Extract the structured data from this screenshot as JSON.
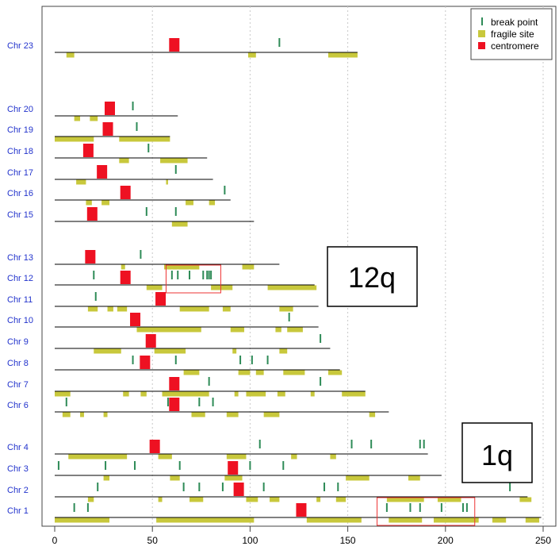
{
  "chart_data": {
    "type": "scatter",
    "xlim": [
      0,
      250
    ],
    "x_ticks": [
      0,
      50,
      100,
      150,
      200,
      250
    ],
    "x_grid": [
      50,
      100,
      150,
      200,
      250
    ],
    "grid": true,
    "legend_position": "top-right",
    "legend": [
      {
        "key": "break_point",
        "label": "break point",
        "symbol": "tick",
        "color": "#2e8b57"
      },
      {
        "key": "fragile_site",
        "label": "fragile site",
        "symbol": "square",
        "color": "#c8c83c"
      },
      {
        "key": "centromere",
        "label": "centromere",
        "symbol": "square",
        "color": "#ee1122"
      }
    ],
    "chromosomes": [
      {
        "label": "Chr 23",
        "length": 155,
        "centromere": 61,
        "breakpoints": [
          115
        ],
        "fragile_sites": [
          [
            6,
            10
          ],
          [
            99,
            103
          ],
          [
            140,
            155
          ]
        ]
      },
      {
        "label": "Chr 20",
        "length": 63,
        "centromere": 28,
        "breakpoints": [
          40
        ],
        "fragile_sites": [
          [
            10,
            13
          ],
          [
            18,
            22
          ]
        ]
      },
      {
        "label": "Chr 19",
        "length": 59,
        "centromere": 27,
        "breakpoints": [
          42
        ],
        "fragile_sites": [
          [
            0,
            20
          ],
          [
            33,
            59
          ]
        ]
      },
      {
        "label": "Chr 18",
        "length": 78,
        "centromere": 17,
        "breakpoints": [
          48
        ],
        "fragile_sites": [
          [
            33,
            38
          ],
          [
            54,
            68
          ]
        ]
      },
      {
        "label": "Chr 17",
        "length": 81,
        "centromere": 24,
        "breakpoints": [
          62
        ],
        "fragile_sites": [
          [
            11,
            16
          ],
          [
            57,
            58
          ]
        ]
      },
      {
        "label": "Chr 16",
        "length": 90,
        "centromere": 36,
        "breakpoints": [
          87
        ],
        "fragile_sites": [
          [
            16,
            19
          ],
          [
            24,
            28
          ],
          [
            67,
            71
          ],
          [
            79,
            82
          ]
        ]
      },
      {
        "label": "Chr 15",
        "length": 102,
        "centromere": 19,
        "breakpoints": [
          47,
          62
        ],
        "fragile_sites": [
          [
            60,
            68
          ]
        ]
      },
      {
        "label": "Chr 13",
        "length": 115,
        "centromere": 18,
        "breakpoints": [
          44
        ],
        "fragile_sites": [
          [
            34,
            36
          ],
          [
            56,
            74
          ],
          [
            96,
            102
          ]
        ]
      },
      {
        "label": "Chr 12",
        "length": 133,
        "centromere": 36,
        "breakpoints": [
          20,
          60,
          63,
          69,
          76,
          78,
          79,
          80
        ],
        "fragile_sites": [
          [
            47,
            55
          ],
          [
            80,
            91
          ],
          [
            109,
            134
          ]
        ]
      },
      {
        "label": "Chr 11",
        "length": 135,
        "centromere": 54,
        "breakpoints": [
          21
        ],
        "fragile_sites": [
          [
            17,
            22
          ],
          [
            27,
            30
          ],
          [
            32,
            37
          ],
          [
            64,
            79
          ],
          [
            86,
            90
          ],
          [
            115,
            122
          ]
        ]
      },
      {
        "label": "Chr 10",
        "length": 135,
        "centromere": 41,
        "breakpoints": [
          120
        ],
        "fragile_sites": [
          [
            42,
            75
          ],
          [
            90,
            97
          ],
          [
            113,
            116
          ],
          [
            119,
            127
          ]
        ]
      },
      {
        "label": "Chr 9",
        "length": 141,
        "centromere": 49,
        "breakpoints": [
          136
        ],
        "fragile_sites": [
          [
            20,
            34
          ],
          [
            51,
            67
          ],
          [
            91,
            93
          ],
          [
            115,
            119
          ]
        ]
      },
      {
        "label": "Chr 8",
        "length": 146,
        "centromere": 46,
        "breakpoints": [
          40,
          62,
          95,
          101,
          109
        ],
        "fragile_sites": [
          [
            66,
            74
          ],
          [
            94,
            100
          ],
          [
            103,
            107
          ],
          [
            117,
            128
          ],
          [
            140,
            147
          ]
        ]
      },
      {
        "label": "Chr 7",
        "length": 159,
        "centromere": 61,
        "breakpoints": [
          79,
          136
        ],
        "fragile_sites": [
          [
            0,
            8
          ],
          [
            35,
            38
          ],
          [
            44,
            47
          ],
          [
            55,
            79
          ],
          [
            92,
            94
          ],
          [
            98,
            108
          ],
          [
            114,
            118
          ],
          [
            131,
            133
          ],
          [
            147,
            159
          ]
        ]
      },
      {
        "label": "Chr 6",
        "length": 171,
        "centromere": 61,
        "breakpoints": [
          6,
          58,
          74,
          81
        ],
        "fragile_sites": [
          [
            4,
            8
          ],
          [
            13,
            15
          ],
          [
            25,
            27
          ],
          [
            70,
            77
          ],
          [
            88,
            94
          ],
          [
            107,
            115
          ],
          [
            161,
            164
          ]
        ]
      },
      {
        "label": "Chr 4",
        "length": 191,
        "centromere": 51,
        "breakpoints": [
          105,
          152,
          162,
          187,
          189
        ],
        "fragile_sites": [
          [
            7,
            37
          ],
          [
            53,
            60
          ],
          [
            88,
            98
          ],
          [
            121,
            124
          ],
          [
            141,
            144
          ]
        ]
      },
      {
        "label": "Chr 3",
        "length": 198,
        "centromere": 91,
        "breakpoints": [
          2,
          26,
          41,
          64,
          100,
          117
        ],
        "fragile_sites": [
          [
            25,
            28
          ],
          [
            59,
            64
          ],
          [
            87,
            96
          ],
          [
            149,
            161
          ],
          [
            181,
            187
          ]
        ]
      },
      {
        "label": "Chr 2",
        "length": 242,
        "centromere": 94,
        "breakpoints": [
          22,
          66,
          74,
          86,
          107,
          138,
          145,
          233
        ],
        "fragile_sites": [
          [
            17,
            20
          ],
          [
            53,
            55
          ],
          [
            69,
            76
          ],
          [
            98,
            104
          ],
          [
            110,
            115
          ],
          [
            134,
            136
          ],
          [
            144,
            149
          ],
          [
            170,
            189
          ],
          [
            196,
            208
          ],
          [
            238,
            244
          ]
        ]
      },
      {
        "label": "Chr 1",
        "length": 249,
        "centromere": 126,
        "breakpoints": [
          10,
          17,
          170,
          182,
          187,
          198,
          209,
          211
        ],
        "fragile_sites": [
          [
            0,
            28
          ],
          [
            52,
            102
          ],
          [
            129,
            157
          ],
          [
            171,
            188
          ],
          [
            194,
            217
          ],
          [
            224,
            231
          ],
          [
            241,
            248
          ]
        ]
      }
    ],
    "highlight_boxes": [
      {
        "chromosome": "Chr 12",
        "x_range": [
          57,
          85
        ]
      },
      {
        "chromosome": "Chr 1",
        "x_range": [
          165,
          215
        ]
      }
    ]
  },
  "callouts": {
    "q12": "12q",
    "q1": "1q"
  },
  "colors": {
    "breakpoint": "#2e8b57",
    "fragile": "#c8c83c",
    "centromere": "#ee1122",
    "label": "#2233cc",
    "highlight": "#ee3333"
  }
}
